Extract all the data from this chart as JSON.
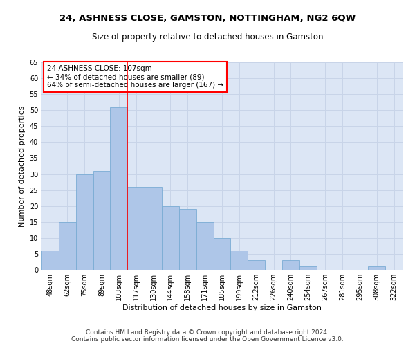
{
  "title": "24, ASHNESS CLOSE, GAMSTON, NOTTINGHAM, NG2 6QW",
  "subtitle": "Size of property relative to detached houses in Gamston",
  "xlabel": "Distribution of detached houses by size in Gamston",
  "ylabel": "Number of detached properties",
  "footer_line1": "Contains HM Land Registry data © Crown copyright and database right 2024.",
  "footer_line2": "Contains public sector information licensed under the Open Government Licence v3.0.",
  "bar_labels": [
    "48sqm",
    "62sqm",
    "75sqm",
    "89sqm",
    "103sqm",
    "117sqm",
    "130sqm",
    "144sqm",
    "158sqm",
    "171sqm",
    "185sqm",
    "199sqm",
    "212sqm",
    "226sqm",
    "240sqm",
    "254sqm",
    "267sqm",
    "281sqm",
    "295sqm",
    "308sqm",
    "322sqm"
  ],
  "bar_values": [
    6,
    15,
    30,
    31,
    51,
    26,
    26,
    20,
    19,
    15,
    10,
    6,
    3,
    0,
    3,
    1,
    0,
    0,
    0,
    1,
    0
  ],
  "bar_color": "#aec6e8",
  "bar_edge_color": "#7aacd4",
  "vline_x": 4.5,
  "vline_color": "red",
  "annotation_title": "24 ASHNESS CLOSE: 107sqm",
  "annotation_line1": "← 34% of detached houses are smaller (89)",
  "annotation_line2": "64% of semi-detached houses are larger (167) →",
  "annotation_box_color": "white",
  "annotation_box_edge_color": "red",
  "ylim": [
    0,
    65
  ],
  "yticks": [
    0,
    5,
    10,
    15,
    20,
    25,
    30,
    35,
    40,
    45,
    50,
    55,
    60,
    65
  ],
  "grid_color": "#c8d4e8",
  "background_color": "#dce6f5",
  "title_fontsize": 9.5,
  "subtitle_fontsize": 8.5,
  "ylabel_fontsize": 8,
  "xlabel_fontsize": 8,
  "tick_fontsize": 7,
  "annotation_fontsize": 7.5,
  "footer_fontsize": 6.5
}
